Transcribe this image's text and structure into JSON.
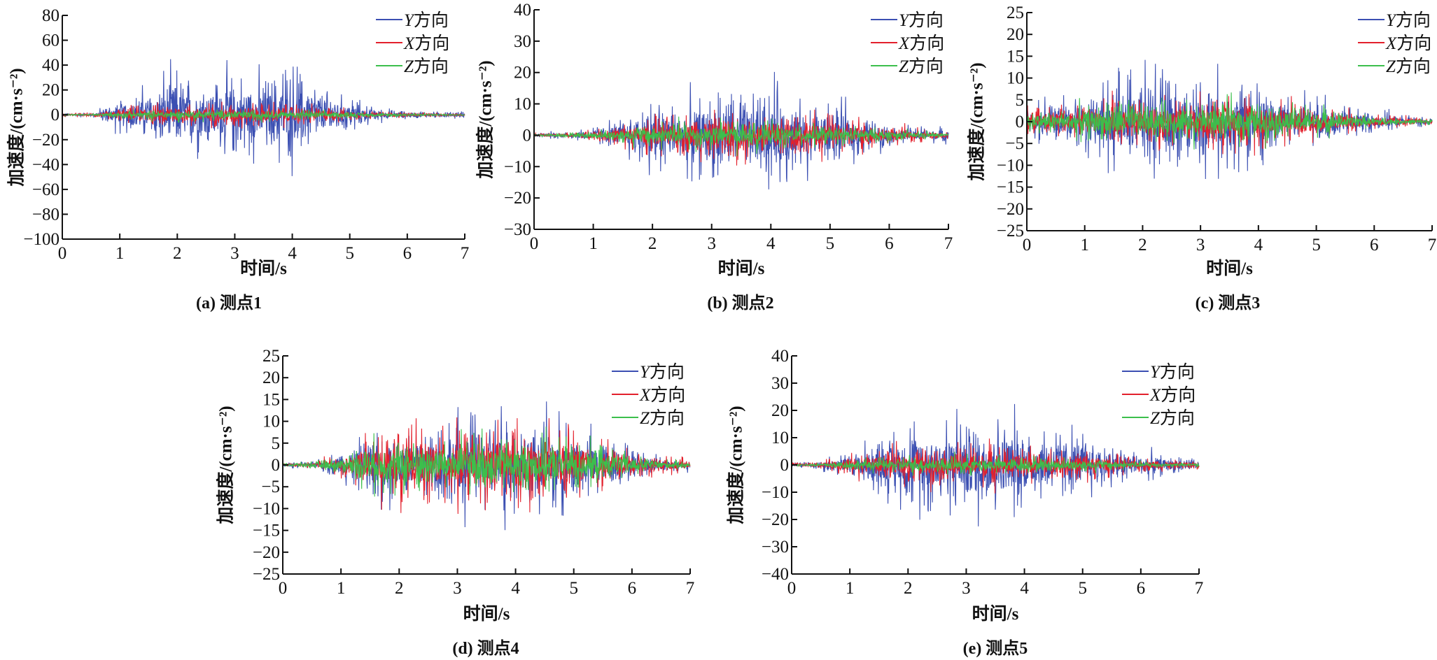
{
  "chart_data": [
    {
      "type": "line",
      "caption": "(a) 测点1",
      "xlabel": "时间/s",
      "ylabel": "加速度/(cm·s⁻²)",
      "xlim": [
        0,
        7
      ],
      "ylim": [
        -100,
        80
      ],
      "xticks": [
        0,
        1,
        2,
        3,
        4,
        5,
        6,
        7
      ],
      "yticks": [
        -100,
        -80,
        -60,
        -40,
        -20,
        0,
        20,
        40,
        60,
        80
      ],
      "legend": "top-right",
      "grid": false,
      "series": [
        {
          "name": "Y方向",
          "color": "#3b4fb2",
          "envelope_t": [
            0,
            0.5,
            1,
            1.5,
            2,
            2.5,
            3,
            3.5,
            4,
            4.5,
            5,
            5.5,
            6,
            6.5,
            7
          ],
          "peak_amplitude": [
            2,
            2,
            20,
            35,
            55,
            45,
            55,
            50,
            65,
            35,
            20,
            8,
            5,
            4,
            4
          ]
        },
        {
          "name": "X方向",
          "color": "#e3202c",
          "envelope_t": [
            0,
            0.5,
            1,
            1.5,
            2,
            2.5,
            3,
            3.5,
            4,
            4.5,
            5,
            5.5,
            6,
            6.5,
            7
          ],
          "peak_amplitude": [
            2,
            2,
            8,
            12,
            15,
            14,
            15,
            14,
            14,
            10,
            7,
            4,
            3,
            2,
            2
          ]
        },
        {
          "name": "Z方向",
          "color": "#3cbf4c",
          "envelope_t": [
            0,
            0.5,
            1,
            1.5,
            2,
            2.5,
            3,
            3.5,
            4,
            4.5,
            5,
            5.5,
            6,
            6.5,
            7
          ],
          "peak_amplitude": [
            1,
            1,
            4,
            6,
            7,
            7,
            7,
            7,
            6,
            5,
            4,
            2,
            2,
            1,
            1
          ]
        }
      ]
    },
    {
      "type": "line",
      "caption": "(b) 测点2",
      "xlabel": "时间/s",
      "ylabel": "加速度/(cm·s⁻²)",
      "xlim": [
        0,
        7
      ],
      "ylim": [
        -30,
        40
      ],
      "xticks": [
        0,
        1,
        2,
        3,
        4,
        5,
        6,
        7
      ],
      "yticks": [
        -30,
        -20,
        -10,
        0,
        10,
        20,
        30,
        40
      ],
      "legend": "top-right",
      "grid": false,
      "series": [
        {
          "name": "Y方向",
          "color": "#3b4fb2",
          "envelope_t": [
            0,
            0.5,
            1,
            1.5,
            2,
            2.5,
            3,
            3.5,
            4,
            4.5,
            5,
            5.5,
            6,
            6.5,
            7
          ],
          "peak_amplitude": [
            1,
            2,
            4,
            8,
            20,
            16,
            22,
            18,
            27,
            16,
            16,
            10,
            5,
            4,
            3
          ]
        },
        {
          "name": "X方向",
          "color": "#e3202c",
          "envelope_t": [
            0,
            0.5,
            1,
            1.5,
            2,
            2.5,
            3,
            3.5,
            4,
            4.5,
            5,
            5.5,
            6,
            6.5,
            7
          ],
          "peak_amplitude": [
            1,
            1,
            3,
            5,
            9,
            10,
            12,
            12,
            12,
            11,
            10,
            8,
            5,
            3,
            2
          ]
        },
        {
          "name": "Z方向",
          "color": "#3cbf4c",
          "envelope_t": [
            0,
            0.5,
            1,
            1.5,
            2,
            2.5,
            3,
            3.5,
            4,
            4.5,
            5,
            5.5,
            6,
            6.5,
            7
          ],
          "peak_amplitude": [
            0.5,
            1,
            2,
            4,
            6,
            7,
            7,
            7,
            6,
            5,
            5,
            4,
            3,
            2,
            1
          ]
        }
      ]
    },
    {
      "type": "line",
      "caption": "(c) 测点3",
      "xlabel": "时间/s",
      "ylabel": "加速度/(cm·s⁻²)",
      "xlim": [
        0,
        7
      ],
      "ylim": [
        -25,
        25
      ],
      "xticks": [
        0,
        1,
        2,
        3,
        4,
        5,
        6,
        7
      ],
      "yticks": [
        -25,
        -20,
        -15,
        -10,
        -5,
        0,
        5,
        10,
        15,
        20,
        25
      ],
      "legend": "top-right",
      "grid": false,
      "series": [
        {
          "name": "Y方向",
          "color": "#3b4fb2",
          "envelope_t": [
            0,
            0.5,
            1,
            1.5,
            2,
            2.5,
            3,
            3.5,
            4,
            4.5,
            5,
            5.5,
            6,
            6.5,
            7
          ],
          "peak_amplitude": [
            6,
            8,
            10,
            14,
            17,
            15,
            16,
            14,
            16,
            10,
            8,
            6,
            4,
            2,
            2
          ]
        },
        {
          "name": "X方向",
          "color": "#e3202c",
          "envelope_t": [
            0,
            0.5,
            1,
            1.5,
            2,
            2.5,
            3,
            3.5,
            4,
            4.5,
            5,
            5.5,
            6,
            6.5,
            7
          ],
          "peak_amplitude": [
            4,
            5,
            7,
            8,
            9,
            9,
            9,
            9,
            9,
            8,
            6,
            4,
            3,
            2,
            1
          ]
        },
        {
          "name": "Z方向",
          "color": "#3cbf4c",
          "envelope_t": [
            0,
            0.5,
            1,
            1.5,
            2,
            2.5,
            3,
            3.5,
            4,
            4.5,
            5,
            5.5,
            6,
            6.5,
            7
          ],
          "peak_amplitude": [
            4,
            4,
            6,
            7,
            7,
            7,
            7,
            7,
            7,
            6,
            5,
            3,
            2,
            1,
            1
          ]
        }
      ]
    },
    {
      "type": "line",
      "caption": "(d) 测点4",
      "xlabel": "时间/s",
      "ylabel": "加速度/(cm·s⁻²)",
      "xlim": [
        0,
        7
      ],
      "ylim": [
        -25,
        25
      ],
      "xticks": [
        0,
        1,
        2,
        3,
        4,
        5,
        6,
        7
      ],
      "yticks": [
        -25,
        -20,
        -15,
        -10,
        -5,
        0,
        5,
        10,
        15,
        20,
        25
      ],
      "legend": "top-right",
      "grid": false,
      "series": [
        {
          "name": "Y方向",
          "color": "#3b4fb2",
          "envelope_t": [
            0,
            0.5,
            1,
            1.5,
            2,
            2.5,
            3,
            3.5,
            4,
            4.5,
            5,
            5.5,
            6,
            6.5,
            7
          ],
          "peak_amplitude": [
            1,
            1,
            5,
            12,
            14,
            14,
            17,
            18,
            19,
            15,
            15,
            10,
            6,
            3,
            2
          ]
        },
        {
          "name": "X方向",
          "color": "#e3202c",
          "envelope_t": [
            0,
            0.5,
            1,
            1.5,
            2,
            2.5,
            3,
            3.5,
            4,
            4.5,
            5,
            5.5,
            6,
            6.5,
            7
          ],
          "peak_amplitude": [
            0.5,
            1,
            4,
            10,
            12,
            12,
            14,
            14,
            15,
            12,
            12,
            8,
            5,
            3,
            2
          ]
        },
        {
          "name": "Z方向",
          "color": "#3cbf4c",
          "envelope_t": [
            0,
            0.5,
            1,
            1.5,
            2,
            2.5,
            3,
            3.5,
            4,
            4.5,
            5,
            5.5,
            6,
            6.5,
            7
          ],
          "peak_amplitude": [
            0.5,
            1,
            3,
            8,
            9,
            9,
            10,
            10,
            10,
            9,
            9,
            6,
            4,
            2,
            1
          ]
        }
      ]
    },
    {
      "type": "line",
      "caption": "(e) 测点5",
      "xlabel": "时间/s",
      "ylabel": "加速度/(cm·s⁻²)",
      "xlim": [
        0,
        7
      ],
      "ylim": [
        -40,
        40
      ],
      "xticks": [
        0,
        1,
        2,
        3,
        4,
        5,
        6,
        7
      ],
      "yticks": [
        -40,
        -30,
        -20,
        -10,
        0,
        10,
        20,
        30,
        40
      ],
      "legend": "top-right",
      "grid": false,
      "series": [
        {
          "name": "Y方向",
          "color": "#3b4fb2",
          "envelope_t": [
            0,
            0.5,
            1,
            1.5,
            2,
            2.5,
            3,
            3.5,
            4,
            4.5,
            5,
            5.5,
            6,
            6.5,
            7
          ],
          "peak_amplitude": [
            1,
            3,
            8,
            15,
            22,
            25,
            28,
            30,
            25,
            20,
            18,
            12,
            8,
            5,
            3
          ]
        },
        {
          "name": "X方向",
          "color": "#e3202c",
          "envelope_t": [
            0,
            0.5,
            1,
            1.5,
            2,
            2.5,
            3,
            3.5,
            4,
            4.5,
            5,
            5.5,
            6,
            6.5,
            7
          ],
          "peak_amplitude": [
            1,
            2,
            6,
            8,
            10,
            11,
            11,
            11,
            10,
            9,
            8,
            6,
            4,
            3,
            2
          ]
        },
        {
          "name": "Z方向",
          "color": "#3cbf4c",
          "envelope_t": [
            0,
            0.5,
            1,
            1.5,
            2,
            2.5,
            3,
            3.5,
            4,
            4.5,
            5,
            5.5,
            6,
            6.5,
            7
          ],
          "peak_amplitude": [
            0.5,
            1,
            3,
            4,
            5,
            5,
            5,
            5,
            5,
            4,
            4,
            3,
            2,
            1,
            1
          ]
        }
      ]
    }
  ]
}
